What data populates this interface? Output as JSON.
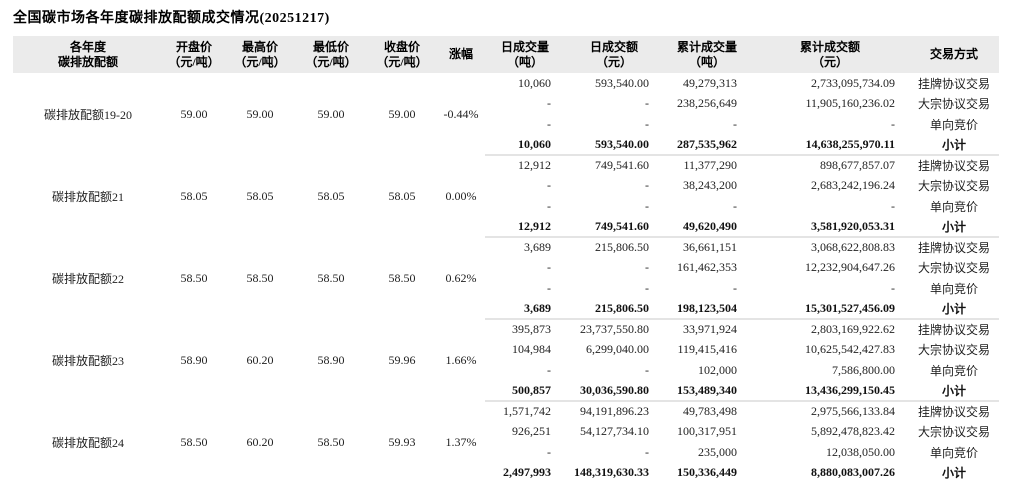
{
  "title": "全国碳市场各年度碳排放配额成交情况(20251217)",
  "colors": {
    "header_background": "#ebebeb",
    "group_divider": "#e4e4e4",
    "text": "#222222"
  },
  "table": {
    "headers": [
      {
        "lines": [
          "各年度",
          "碳排放配额"
        ]
      },
      {
        "lines": [
          "开盘价",
          "（元/吨）"
        ]
      },
      {
        "lines": [
          "最高价",
          "（元/吨）"
        ]
      },
      {
        "lines": [
          "最低价",
          "（元/吨）"
        ]
      },
      {
        "lines": [
          "收盘价",
          "（元/吨）"
        ]
      },
      {
        "lines": [
          "涨幅"
        ]
      },
      {
        "lines": [
          "日成交量",
          "（吨）"
        ]
      },
      {
        "lines": [
          "日成交额",
          "（元）"
        ]
      },
      {
        "lines": [
          "累计成交量",
          "（吨）"
        ]
      },
      {
        "lines": [
          "累计成交额",
          "（元）"
        ]
      },
      {
        "lines": [
          "交易方式"
        ]
      }
    ],
    "groups": [
      {
        "name": "碳排放配额19-20",
        "open": "59.00",
        "high": "59.00",
        "low": "59.00",
        "close": "59.00",
        "change": "-0.44%",
        "rows": [
          {
            "daily_volume": "10,060",
            "daily_turnover": "593,540.00",
            "cum_volume": "49,279,313",
            "cum_turnover": "2,733,095,734.09",
            "method": "挂牌协议交易",
            "subtotal": false
          },
          {
            "daily_volume": "-",
            "daily_turnover": "-",
            "cum_volume": "238,256,649",
            "cum_turnover": "11,905,160,236.02",
            "method": "大宗协议交易",
            "subtotal": false
          },
          {
            "daily_volume": "-",
            "daily_turnover": "-",
            "cum_volume": "-",
            "cum_turnover": "-",
            "method": "单向竞价",
            "subtotal": false
          },
          {
            "daily_volume": "10,060",
            "daily_turnover": "593,540.00",
            "cum_volume": "287,535,962",
            "cum_turnover": "14,638,255,970.11",
            "method": "小计",
            "subtotal": true
          }
        ]
      },
      {
        "name": "碳排放配额21",
        "open": "58.05",
        "high": "58.05",
        "low": "58.05",
        "close": "58.05",
        "change": "0.00%",
        "rows": [
          {
            "daily_volume": "12,912",
            "daily_turnover": "749,541.60",
            "cum_volume": "11,377,290",
            "cum_turnover": "898,677,857.07",
            "method": "挂牌协议交易",
            "subtotal": false
          },
          {
            "daily_volume": "-",
            "daily_turnover": "-",
            "cum_volume": "38,243,200",
            "cum_turnover": "2,683,242,196.24",
            "method": "大宗协议交易",
            "subtotal": false
          },
          {
            "daily_volume": "-",
            "daily_turnover": "-",
            "cum_volume": "-",
            "cum_turnover": "-",
            "method": "单向竞价",
            "subtotal": false
          },
          {
            "daily_volume": "12,912",
            "daily_turnover": "749,541.60",
            "cum_volume": "49,620,490",
            "cum_turnover": "3,581,920,053.31",
            "method": "小计",
            "subtotal": true
          }
        ]
      },
      {
        "name": "碳排放配额22",
        "open": "58.50",
        "high": "58.50",
        "low": "58.50",
        "close": "58.50",
        "change": "0.62%",
        "rows": [
          {
            "daily_volume": "3,689",
            "daily_turnover": "215,806.50",
            "cum_volume": "36,661,151",
            "cum_turnover": "3,068,622,808.83",
            "method": "挂牌协议交易",
            "subtotal": false
          },
          {
            "daily_volume": "-",
            "daily_turnover": "-",
            "cum_volume": "161,462,353",
            "cum_turnover": "12,232,904,647.26",
            "method": "大宗协议交易",
            "subtotal": false
          },
          {
            "daily_volume": "-",
            "daily_turnover": "-",
            "cum_volume": "-",
            "cum_turnover": "-",
            "method": "单向竞价",
            "subtotal": false
          },
          {
            "daily_volume": "3,689",
            "daily_turnover": "215,806.50",
            "cum_volume": "198,123,504",
            "cum_turnover": "15,301,527,456.09",
            "method": "小计",
            "subtotal": true
          }
        ]
      },
      {
        "name": "碳排放配额23",
        "open": "58.90",
        "high": "60.20",
        "low": "58.90",
        "close": "59.96",
        "change": "1.66%",
        "rows": [
          {
            "daily_volume": "395,873",
            "daily_turnover": "23,737,550.80",
            "cum_volume": "33,971,924",
            "cum_turnover": "2,803,169,922.62",
            "method": "挂牌协议交易",
            "subtotal": false
          },
          {
            "daily_volume": "104,984",
            "daily_turnover": "6,299,040.00",
            "cum_volume": "119,415,416",
            "cum_turnover": "10,625,542,427.83",
            "method": "大宗协议交易",
            "subtotal": false
          },
          {
            "daily_volume": "-",
            "daily_turnover": "-",
            "cum_volume": "102,000",
            "cum_turnover": "7,586,800.00",
            "method": "单向竞价",
            "subtotal": false
          },
          {
            "daily_volume": "500,857",
            "daily_turnover": "30,036,590.80",
            "cum_volume": "153,489,340",
            "cum_turnover": "13,436,299,150.45",
            "method": "小计",
            "subtotal": true
          }
        ]
      },
      {
        "name": "碳排放配额24",
        "open": "58.50",
        "high": "60.20",
        "low": "58.50",
        "close": "59.93",
        "change": "1.37%",
        "rows": [
          {
            "daily_volume": "1,571,742",
            "daily_turnover": "94,191,896.23",
            "cum_volume": "49,783,498",
            "cum_turnover": "2,975,566,133.84",
            "method": "挂牌协议交易",
            "subtotal": false
          },
          {
            "daily_volume": "926,251",
            "daily_turnover": "54,127,734.10",
            "cum_volume": "100,317,951",
            "cum_turnover": "5,892,478,823.42",
            "method": "大宗协议交易",
            "subtotal": false
          },
          {
            "daily_volume": "-",
            "daily_turnover": "-",
            "cum_volume": "235,000",
            "cum_turnover": "12,038,050.00",
            "method": "单向竞价",
            "subtotal": false
          },
          {
            "daily_volume": "2,497,993",
            "daily_turnover": "148,319,630.33",
            "cum_volume": "150,336,449",
            "cum_turnover": "8,880,083,007.26",
            "method": "小计",
            "subtotal": true
          }
        ]
      }
    ]
  }
}
